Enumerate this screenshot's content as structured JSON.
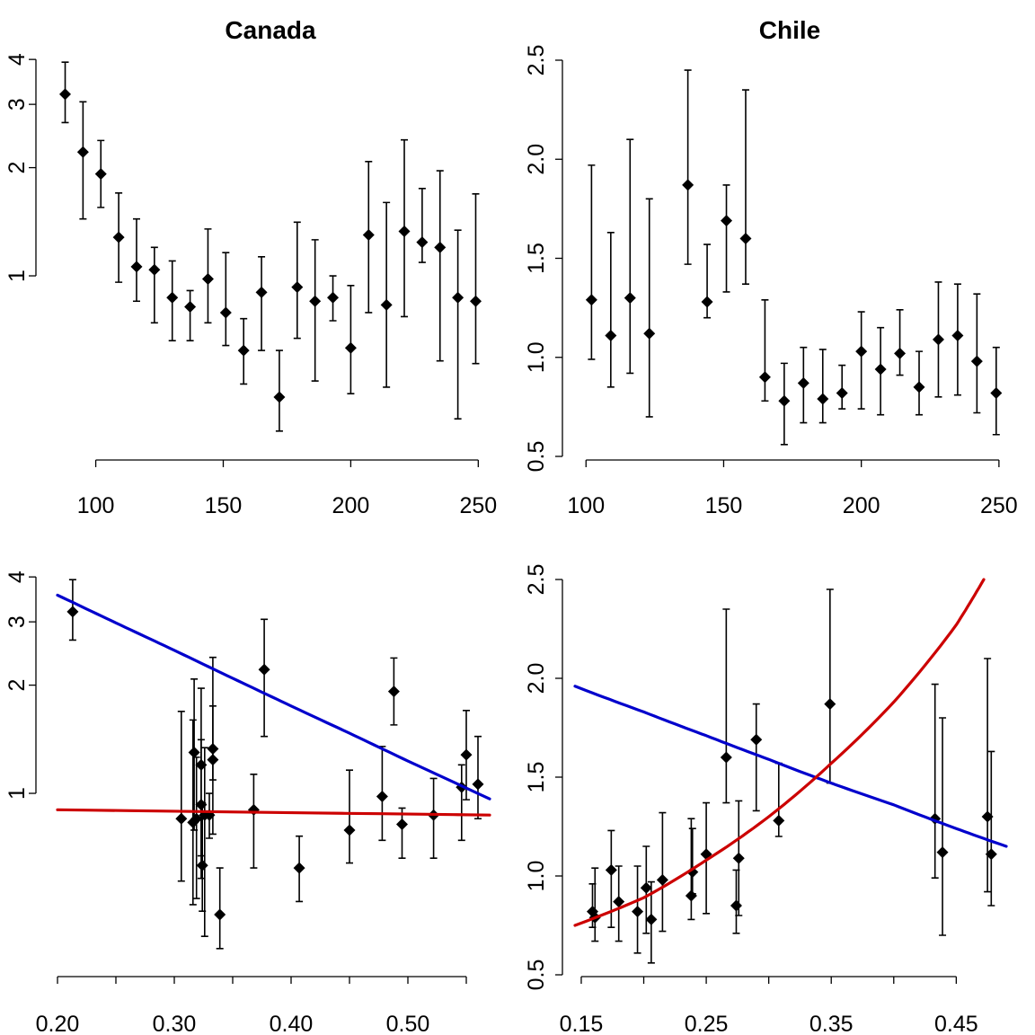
{
  "colors": {
    "curve_blue": "#0000CC",
    "curve_red": "#CC0000",
    "points": "#000000"
  },
  "chart_data": [
    {
      "id": "canada-top",
      "type": "scatter",
      "title": "Canada",
      "xlabel": "",
      "ylabel": "",
      "xlim": [
        85,
        252
      ],
      "ylim": [
        0.32,
        4.05
      ],
      "xticks": [
        100,
        150,
        200,
        250
      ],
      "xtick_labels": [
        "100",
        "150",
        "200",
        "250"
      ],
      "yticks": [
        1,
        2,
        3,
        4
      ],
      "ytick_labels": [
        "1",
        "2",
        "3",
        "4"
      ],
      "y_scale": "log",
      "points": [
        {
          "x": 88,
          "y": 3.2,
          "lo": 2.67,
          "hi": 3.93
        },
        {
          "x": 95,
          "y": 2.21,
          "lo": 1.44,
          "hi": 3.05
        },
        {
          "x": 102,
          "y": 1.92,
          "lo": 1.55,
          "hi": 2.38
        },
        {
          "x": 109,
          "y": 1.28,
          "lo": 0.96,
          "hi": 1.7
        },
        {
          "x": 116,
          "y": 1.06,
          "lo": 0.85,
          "hi": 1.44
        },
        {
          "x": 123,
          "y": 1.04,
          "lo": 0.74,
          "hi": 1.2
        },
        {
          "x": 130,
          "y": 0.87,
          "lo": 0.66,
          "hi": 1.1
        },
        {
          "x": 137,
          "y": 0.82,
          "lo": 0.66,
          "hi": 0.91
        },
        {
          "x": 144,
          "y": 0.98,
          "lo": 0.74,
          "hi": 1.35
        },
        {
          "x": 151,
          "y": 0.79,
          "lo": 0.64,
          "hi": 1.16
        },
        {
          "x": 158,
          "y": 0.62,
          "lo": 0.5,
          "hi": 0.76
        },
        {
          "x": 165,
          "y": 0.9,
          "lo": 0.62,
          "hi": 1.13
        },
        {
          "x": 172,
          "y": 0.46,
          "lo": 0.37,
          "hi": 0.62
        },
        {
          "x": 179,
          "y": 0.93,
          "lo": 0.67,
          "hi": 1.41
        },
        {
          "x": 186,
          "y": 0.85,
          "lo": 0.51,
          "hi": 1.26
        },
        {
          "x": 193,
          "y": 0.87,
          "lo": 0.75,
          "hi": 1.0
        },
        {
          "x": 200,
          "y": 0.63,
          "lo": 0.47,
          "hi": 0.94
        },
        {
          "x": 207,
          "y": 1.3,
          "lo": 0.79,
          "hi": 2.08
        },
        {
          "x": 214,
          "y": 0.83,
          "lo": 0.49,
          "hi": 1.6
        },
        {
          "x": 221,
          "y": 1.33,
          "lo": 0.77,
          "hi": 2.39
        },
        {
          "x": 228,
          "y": 1.24,
          "lo": 1.09,
          "hi": 1.75
        },
        {
          "x": 235,
          "y": 1.2,
          "lo": 0.58,
          "hi": 1.96
        },
        {
          "x": 242,
          "y": 0.87,
          "lo": 0.4,
          "hi": 1.34
        },
        {
          "x": 249,
          "y": 0.85,
          "lo": 0.57,
          "hi": 1.69
        }
      ]
    },
    {
      "id": "chile-top",
      "type": "scatter",
      "title": "Chile",
      "xlabel": "",
      "ylabel": "",
      "xlim": [
        96,
        252
      ],
      "ylim": [
        0.5,
        2.5
      ],
      "xticks": [
        100,
        150,
        200,
        250
      ],
      "xtick_labels": [
        "100",
        "150",
        "200",
        "250"
      ],
      "yticks": [
        0.5,
        1.0,
        1.5,
        2.0,
        2.5
      ],
      "ytick_labels": [
        "0.5",
        "1.0",
        "1.5",
        "2.0",
        "2.5"
      ],
      "y_scale": "linear",
      "points": [
        {
          "x": 102,
          "y": 1.29,
          "lo": 0.99,
          "hi": 1.97
        },
        {
          "x": 109,
          "y": 1.11,
          "lo": 0.85,
          "hi": 1.63
        },
        {
          "x": 116,
          "y": 1.3,
          "lo": 0.92,
          "hi": 2.1
        },
        {
          "x": 123,
          "y": 1.12,
          "lo": 0.7,
          "hi": 1.8
        },
        {
          "x": 137,
          "y": 1.87,
          "lo": 1.47,
          "hi": 2.45
        },
        {
          "x": 144,
          "y": 1.28,
          "lo": 1.2,
          "hi": 1.57
        },
        {
          "x": 151,
          "y": 1.69,
          "lo": 1.33,
          "hi": 1.87
        },
        {
          "x": 158,
          "y": 1.6,
          "lo": 1.37,
          "hi": 2.35
        },
        {
          "x": 165,
          "y": 0.9,
          "lo": 0.78,
          "hi": 1.29
        },
        {
          "x": 172,
          "y": 0.78,
          "lo": 0.56,
          "hi": 0.97
        },
        {
          "x": 179,
          "y": 0.87,
          "lo": 0.67,
          "hi": 1.05
        },
        {
          "x": 186,
          "y": 0.79,
          "lo": 0.67,
          "hi": 1.04
        },
        {
          "x": 193,
          "y": 0.82,
          "lo": 0.74,
          "hi": 0.96
        },
        {
          "x": 200,
          "y": 1.03,
          "lo": 0.74,
          "hi": 1.23
        },
        {
          "x": 207,
          "y": 0.94,
          "lo": 0.71,
          "hi": 1.15
        },
        {
          "x": 214,
          "y": 1.02,
          "lo": 0.91,
          "hi": 1.24
        },
        {
          "x": 221,
          "y": 0.85,
          "lo": 0.71,
          "hi": 1.03
        },
        {
          "x": 228,
          "y": 1.09,
          "lo": 0.8,
          "hi": 1.38
        },
        {
          "x": 235,
          "y": 1.11,
          "lo": 0.81,
          "hi": 1.37
        },
        {
          "x": 242,
          "y": 0.98,
          "lo": 0.72,
          "hi": 1.32
        },
        {
          "x": 249,
          "y": 0.82,
          "lo": 0.61,
          "hi": 1.05
        }
      ]
    },
    {
      "id": "canada-bottom",
      "type": "scatter",
      "title": "",
      "xlabel": "",
      "ylabel": "",
      "xlim": [
        0.2,
        0.57
      ],
      "ylim": [
        0.32,
        4.05
      ],
      "xticks": [
        0.2,
        0.25,
        0.3,
        0.35,
        0.4,
        0.45,
        0.5,
        0.55
      ],
      "xtick_labels": [
        "0.20",
        "",
        "0.30",
        "",
        "0.40",
        "",
        "0.50",
        ""
      ],
      "yticks": [
        1,
        2,
        3,
        4
      ],
      "ytick_labels": [
        "1",
        "2",
        "3",
        "4"
      ],
      "y_scale": "log",
      "points": [
        {
          "x": 0.213,
          "y": 3.2,
          "lo": 2.67,
          "hi": 3.93
        },
        {
          "x": 0.377,
          "y": 2.21,
          "lo": 1.44,
          "hi": 3.05
        },
        {
          "x": 0.488,
          "y": 1.92,
          "lo": 1.55,
          "hi": 2.38
        },
        {
          "x": 0.333,
          "y": 1.33,
          "lo": 0.77,
          "hi": 2.39
        },
        {
          "x": 0.317,
          "y": 1.3,
          "lo": 0.79,
          "hi": 2.08
        },
        {
          "x": 0.55,
          "y": 1.28,
          "lo": 0.96,
          "hi": 1.7
        },
        {
          "x": 0.333,
          "y": 1.24,
          "lo": 1.09,
          "hi": 1.75
        },
        {
          "x": 0.323,
          "y": 1.2,
          "lo": 0.58,
          "hi": 1.96
        },
        {
          "x": 0.56,
          "y": 1.06,
          "lo": 0.85,
          "hi": 1.44
        },
        {
          "x": 0.546,
          "y": 1.04,
          "lo": 0.74,
          "hi": 1.2
        },
        {
          "x": 0.478,
          "y": 0.98,
          "lo": 0.74,
          "hi": 1.35
        },
        {
          "x": 0.323,
          "y": 0.93,
          "lo": 0.67,
          "hi": 1.41
        },
        {
          "x": 0.368,
          "y": 0.9,
          "lo": 0.62,
          "hi": 1.13
        },
        {
          "x": 0.522,
          "y": 0.87,
          "lo": 0.66,
          "hi": 1.1
        },
        {
          "x": 0.33,
          "y": 0.87,
          "lo": 0.75,
          "hi": 1.0
        },
        {
          "x": 0.326,
          "y": 0.87,
          "lo": 0.4,
          "hi": 1.34
        },
        {
          "x": 0.306,
          "y": 0.85,
          "lo": 0.57,
          "hi": 1.69
        },
        {
          "x": 0.319,
          "y": 0.85,
          "lo": 0.51,
          "hi": 1.26
        },
        {
          "x": 0.316,
          "y": 0.83,
          "lo": 0.49,
          "hi": 1.6
        },
        {
          "x": 0.495,
          "y": 0.82,
          "lo": 0.66,
          "hi": 0.91
        },
        {
          "x": 0.45,
          "y": 0.79,
          "lo": 0.64,
          "hi": 1.16
        },
        {
          "x": 0.324,
          "y": 0.63,
          "lo": 0.47,
          "hi": 0.94
        },
        {
          "x": 0.407,
          "y": 0.62,
          "lo": 0.5,
          "hi": 0.76
        },
        {
          "x": 0.339,
          "y": 0.46,
          "lo": 0.37,
          "hi": 0.62
        }
      ],
      "curves": [
        {
          "color": "blue",
          "x": [
            0.2,
            0.25,
            0.3,
            0.35,
            0.4,
            0.45,
            0.5,
            0.57
          ],
          "y": [
            3.56,
            2.98,
            2.5,
            2.09,
            1.75,
            1.47,
            1.23,
            0.965
          ]
        },
        {
          "color": "red",
          "x": [
            0.2,
            0.57
          ],
          "y": [
            0.9,
            0.87
          ]
        }
      ]
    },
    {
      "id": "chile-bottom",
      "type": "scatter",
      "title": "",
      "xlabel": "",
      "ylabel": "",
      "xlim": [
        0.145,
        0.49
      ],
      "ylim": [
        0.5,
        2.5
      ],
      "xticks": [
        0.15,
        0.2,
        0.25,
        0.3,
        0.35,
        0.4,
        0.45
      ],
      "xtick_labels": [
        "0.15",
        "",
        "0.25",
        "",
        "0.35",
        "",
        "0.45"
      ],
      "yticks": [
        0.5,
        1.0,
        1.5,
        2.0,
        2.5
      ],
      "ytick_labels": [
        "0.5",
        "1.0",
        "1.5",
        "2.0",
        "2.5"
      ],
      "y_scale": "linear",
      "points": [
        {
          "x": 0.349,
          "y": 1.87,
          "lo": 1.47,
          "hi": 2.45
        },
        {
          "x": 0.29,
          "y": 1.69,
          "lo": 1.33,
          "hi": 1.87
        },
        {
          "x": 0.266,
          "y": 1.6,
          "lo": 1.37,
          "hi": 2.35
        },
        {
          "x": 0.475,
          "y": 1.3,
          "lo": 0.92,
          "hi": 2.1
        },
        {
          "x": 0.433,
          "y": 1.29,
          "lo": 0.99,
          "hi": 1.97
        },
        {
          "x": 0.308,
          "y": 1.28,
          "lo": 1.2,
          "hi": 1.57
        },
        {
          "x": 0.439,
          "y": 1.12,
          "lo": 0.7,
          "hi": 1.8
        },
        {
          "x": 0.25,
          "y": 1.11,
          "lo": 0.81,
          "hi": 1.37
        },
        {
          "x": 0.478,
          "y": 1.11,
          "lo": 0.85,
          "hi": 1.63
        },
        {
          "x": 0.276,
          "y": 1.09,
          "lo": 0.8,
          "hi": 1.38
        },
        {
          "x": 0.174,
          "y": 1.03,
          "lo": 0.74,
          "hi": 1.23
        },
        {
          "x": 0.239,
          "y": 1.02,
          "lo": 0.91,
          "hi": 1.24
        },
        {
          "x": 0.215,
          "y": 0.98,
          "lo": 0.72,
          "hi": 1.32
        },
        {
          "x": 0.202,
          "y": 0.94,
          "lo": 0.71,
          "hi": 1.15
        },
        {
          "x": 0.238,
          "y": 0.9,
          "lo": 0.78,
          "hi": 1.29
        },
        {
          "x": 0.18,
          "y": 0.87,
          "lo": 0.67,
          "hi": 1.05
        },
        {
          "x": 0.274,
          "y": 0.85,
          "lo": 0.71,
          "hi": 1.03
        },
        {
          "x": 0.195,
          "y": 0.82,
          "lo": 0.61,
          "hi": 1.05
        },
        {
          "x": 0.159,
          "y": 0.82,
          "lo": 0.74,
          "hi": 0.96
        },
        {
          "x": 0.161,
          "y": 0.79,
          "lo": 0.67,
          "hi": 1.04
        },
        {
          "x": 0.206,
          "y": 0.78,
          "lo": 0.56,
          "hi": 0.97
        }
      ],
      "curves": [
        {
          "color": "blue",
          "x": [
            0.145,
            0.2,
            0.25,
            0.3,
            0.35,
            0.4,
            0.45,
            0.49
          ],
          "y": [
            1.96,
            1.83,
            1.71,
            1.59,
            1.47,
            1.36,
            1.24,
            1.15
          ]
        },
        {
          "color": "red",
          "x": [
            0.145,
            0.2,
            0.25,
            0.3,
            0.35,
            0.4,
            0.45,
            0.472
          ],
          "y": [
            0.75,
            0.89,
            1.08,
            1.3,
            1.57,
            1.88,
            2.27,
            2.5
          ]
        }
      ]
    }
  ]
}
